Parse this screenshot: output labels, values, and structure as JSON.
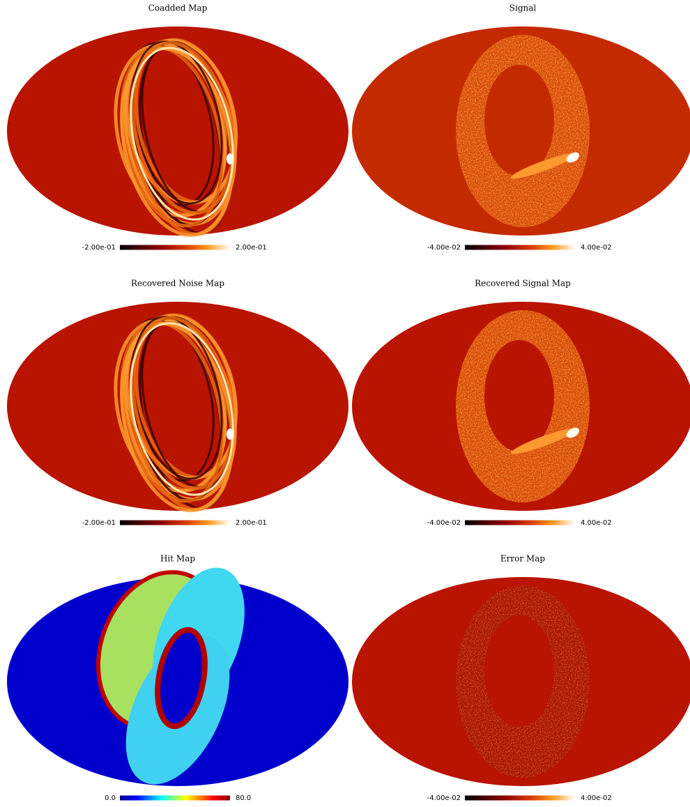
{
  "chart_data": [
    {
      "type": "map",
      "title": "Coadded Map",
      "colormap": "hot",
      "clim": [
        -0.2,
        0.2
      ],
      "cticks": [
        {
          "value": -0.2,
          "label": "-2.00e-01"
        },
        {
          "value": 0.2,
          "label": "2.00e-01"
        }
      ]
    },
    {
      "type": "map",
      "title": "Signal",
      "colormap": "hot",
      "clim": [
        -0.04,
        0.04
      ],
      "cticks": [
        {
          "value": -0.04,
          "label": "-4.00e-02"
        },
        {
          "value": 0.04,
          "label": "4.00e-02"
        }
      ]
    },
    {
      "type": "map",
      "title": "Recovered Noise Map",
      "colormap": "hot",
      "clim": [
        -0.2,
        0.2
      ],
      "cticks": [
        {
          "value": -0.2,
          "label": "-2.00e-01"
        },
        {
          "value": 0.2,
          "label": "2.00e-01"
        }
      ]
    },
    {
      "type": "map",
      "title": "Recovered Signal Map",
      "colormap": "hot",
      "clim": [
        -0.04,
        0.04
      ],
      "cticks": [
        {
          "value": -0.04,
          "label": "-4.00e-02"
        },
        {
          "value": 0.04,
          "label": "4.00e-02"
        }
      ]
    },
    {
      "type": "map",
      "title": "Hit Map",
      "colormap": "jet",
      "clim": [
        0,
        80
      ],
      "cticks": [
        {
          "value": 0,
          "label": "0.0"
        },
        {
          "value": 80,
          "label": "80.0"
        }
      ]
    },
    {
      "type": "map",
      "title": "Error Map",
      "colormap": "hot",
      "clim": [
        -0.04,
        0.04
      ],
      "cticks": [
        {
          "value": -0.04,
          "label": "-4.00e-02"
        },
        {
          "value": 0.04,
          "label": "4.00e-02"
        }
      ]
    }
  ]
}
